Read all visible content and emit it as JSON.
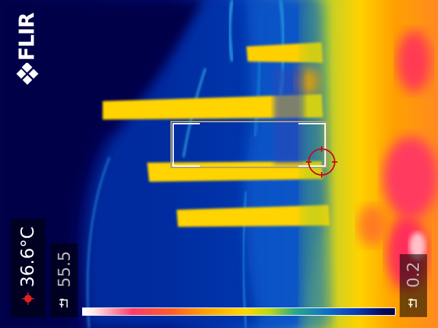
{
  "brand": {
    "logo_text": "FLIR"
  },
  "measurement": {
    "spot_temperature": "36.6°C",
    "unit": "°C"
  },
  "scale": {
    "max_value": "55.5",
    "min_value": "0.2",
    "max_locked": true,
    "min_locked": true
  },
  "palette": {
    "name": "iron",
    "colors": [
      "#ffffff",
      "#ff3a6a",
      "#ffa400",
      "#ffd800",
      "#2aa88a",
      "#1070c8",
      "#02024a"
    ]
  },
  "icons": {
    "logo": "flir-logo-icon",
    "spot": "spot-meter-icon",
    "lock": "lock-icon",
    "crosshair": "crosshair-icon"
  }
}
